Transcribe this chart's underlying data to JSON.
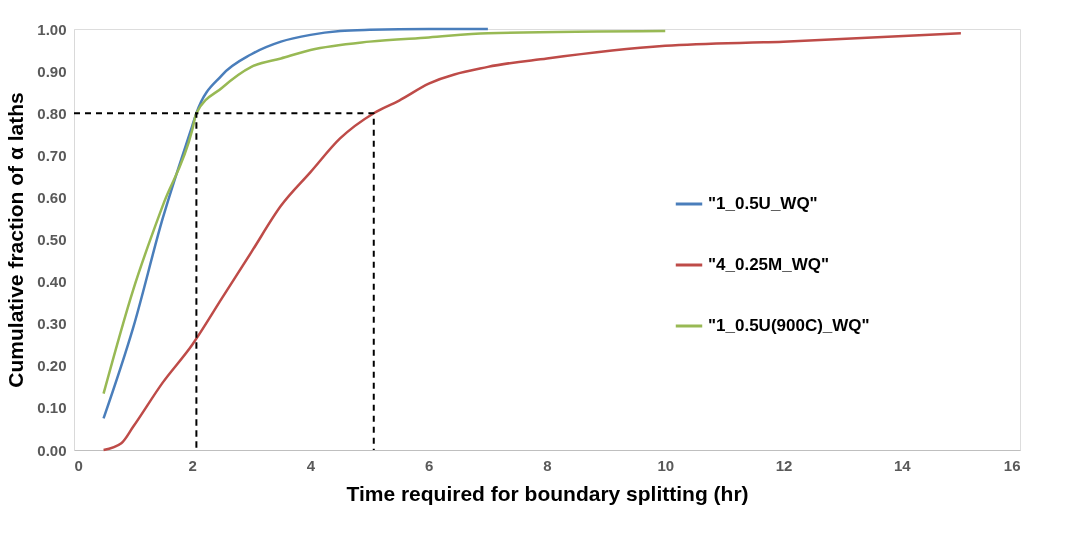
{
  "chart_data": {
    "type": "line",
    "xlabel": "Time required for boundary splitting (hr)",
    "ylabel": "Cumulative fraction of α laths",
    "xlim": [
      0,
      16
    ],
    "xticks": [
      0,
      2,
      4,
      6,
      8,
      10,
      12,
      14,
      16
    ],
    "ylim": [
      0,
      1
    ],
    "yticks": [
      {
        "value": 0,
        "label": "0.00"
      },
      {
        "value": 0.1,
        "label": "0.10"
      },
      {
        "value": 0.2,
        "label": "0.20"
      },
      {
        "value": 0.3,
        "label": "0.30"
      },
      {
        "value": 0.4,
        "label": "0.40"
      },
      {
        "value": 0.5,
        "label": "0.50"
      },
      {
        "value": 0.6,
        "label": "0.60"
      },
      {
        "value": 0.7,
        "label": "0.70"
      },
      {
        "value": 0.8,
        "label": "0.80"
      },
      {
        "value": 0.9,
        "label": "0.90"
      },
      {
        "value": 1,
        "label": "1.00"
      }
    ],
    "grid": false,
    "legend": "right",
    "marker": "none",
    "series": [
      {
        "name": "\"1_0.5U_WQ\"",
        "color": "#4a7ebb",
        "x": [
          0.5,
          1,
          1.5,
          2,
          2.07,
          2.5,
          3,
          3.5,
          4,
          4.5,
          5,
          6,
          7
        ],
        "values": [
          0.075,
          0.29,
          0.55,
          0.77,
          0.8,
          0.89,
          0.94,
          0.97,
          0.986,
          0.995,
          0.998,
          1.0,
          1.0
        ]
      },
      {
        "name": "\"4_0.25M_WQ\"",
        "color": "#be4b48",
        "x": [
          0.5,
          0.8,
          1,
          1.5,
          2,
          2.5,
          3,
          3.5,
          4,
          4.5,
          5.07,
          5.5,
          6,
          7,
          8,
          10,
          12,
          15
        ],
        "values": [
          0.0,
          0.016,
          0.055,
          0.16,
          0.25,
          0.36,
          0.47,
          0.58,
          0.66,
          0.74,
          0.8,
          0.83,
          0.87,
          0.91,
          0.93,
          0.96,
          0.97,
          0.99
        ]
      },
      {
        "name": "\"1_0.5U(900C)_WQ\"",
        "color": "#98b954",
        "x": [
          0.5,
          1,
          1.5,
          2,
          2.07,
          2.5,
          3,
          3.5,
          4,
          5,
          6,
          7,
          10
        ],
        "values": [
          0.134,
          0.38,
          0.58,
          0.76,
          0.8,
          0.86,
          0.91,
          0.93,
          0.95,
          0.97,
          0.98,
          0.99,
          0.995
        ]
      },
      {
        "color": "#000000",
        "line_style": "dashed",
        "x": [
          0,
          2.07,
          2.07,
          2.07,
          5.07,
          5.07
        ],
        "values": [
          0.8,
          0.8,
          0.0,
          0.8,
          0.8,
          0.0
        ]
      }
    ]
  }
}
